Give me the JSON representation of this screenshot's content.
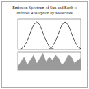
{
  "chart_data": [
    {
      "type": "line",
      "title": "Emission Spectrum of Sun and Earth ::",
      "subtitle": "Infrared Absorption by Molecules",
      "x": [
        0,
        0.5,
        1,
        1.5,
        2,
        2.5,
        3,
        3.5,
        4,
        4.5,
        5,
        5.5,
        6,
        6.5,
        7,
        7.5,
        8,
        8.5,
        9,
        9.5,
        10
      ],
      "series": [
        {
          "color": "#222222",
          "values": [
            0,
            0.02,
            0.1,
            0.3,
            0.6,
            0.9,
            1,
            0.9,
            0.6,
            0.3,
            0.1,
            0.03,
            0,
            0,
            0,
            0,
            0,
            0,
            0,
            0,
            0
          ]
        },
        {
          "color": "#222222",
          "values": [
            0,
            0,
            0,
            0,
            0,
            0,
            0,
            0,
            0,
            0,
            0.02,
            0.1,
            0.3,
            0.6,
            0.9,
            1,
            0.9,
            0.6,
            0.3,
            0.1,
            0.03
          ]
        }
      ],
      "xlim": [
        0,
        10
      ],
      "ylim": [
        0,
        1.1
      ],
      "tick_labels": false,
      "grid": false
    },
    {
      "type": "area",
      "x": [
        0,
        0.5,
        1,
        1.5,
        2,
        2.5,
        3,
        3.5,
        4,
        4.5,
        5,
        5.5,
        6,
        6.5,
        7,
        7.5,
        8,
        8.5,
        9,
        9.5,
        10
      ],
      "series": [
        {
          "color": "#9a9a9a",
          "values": [
            0.2,
            0.5,
            0.8,
            0.3,
            0.6,
            0.9,
            0.4,
            0.7,
            1,
            0.5,
            0.8,
            0.6,
            0.9,
            0.7,
            0.3,
            0.5,
            0.9,
            0.8,
            0.4,
            0.6,
            0.7
          ]
        }
      ],
      "xlim": [
        0,
        10
      ],
      "ylim": [
        0,
        1.1
      ],
      "tick_labels": false,
      "grid": false
    }
  ]
}
